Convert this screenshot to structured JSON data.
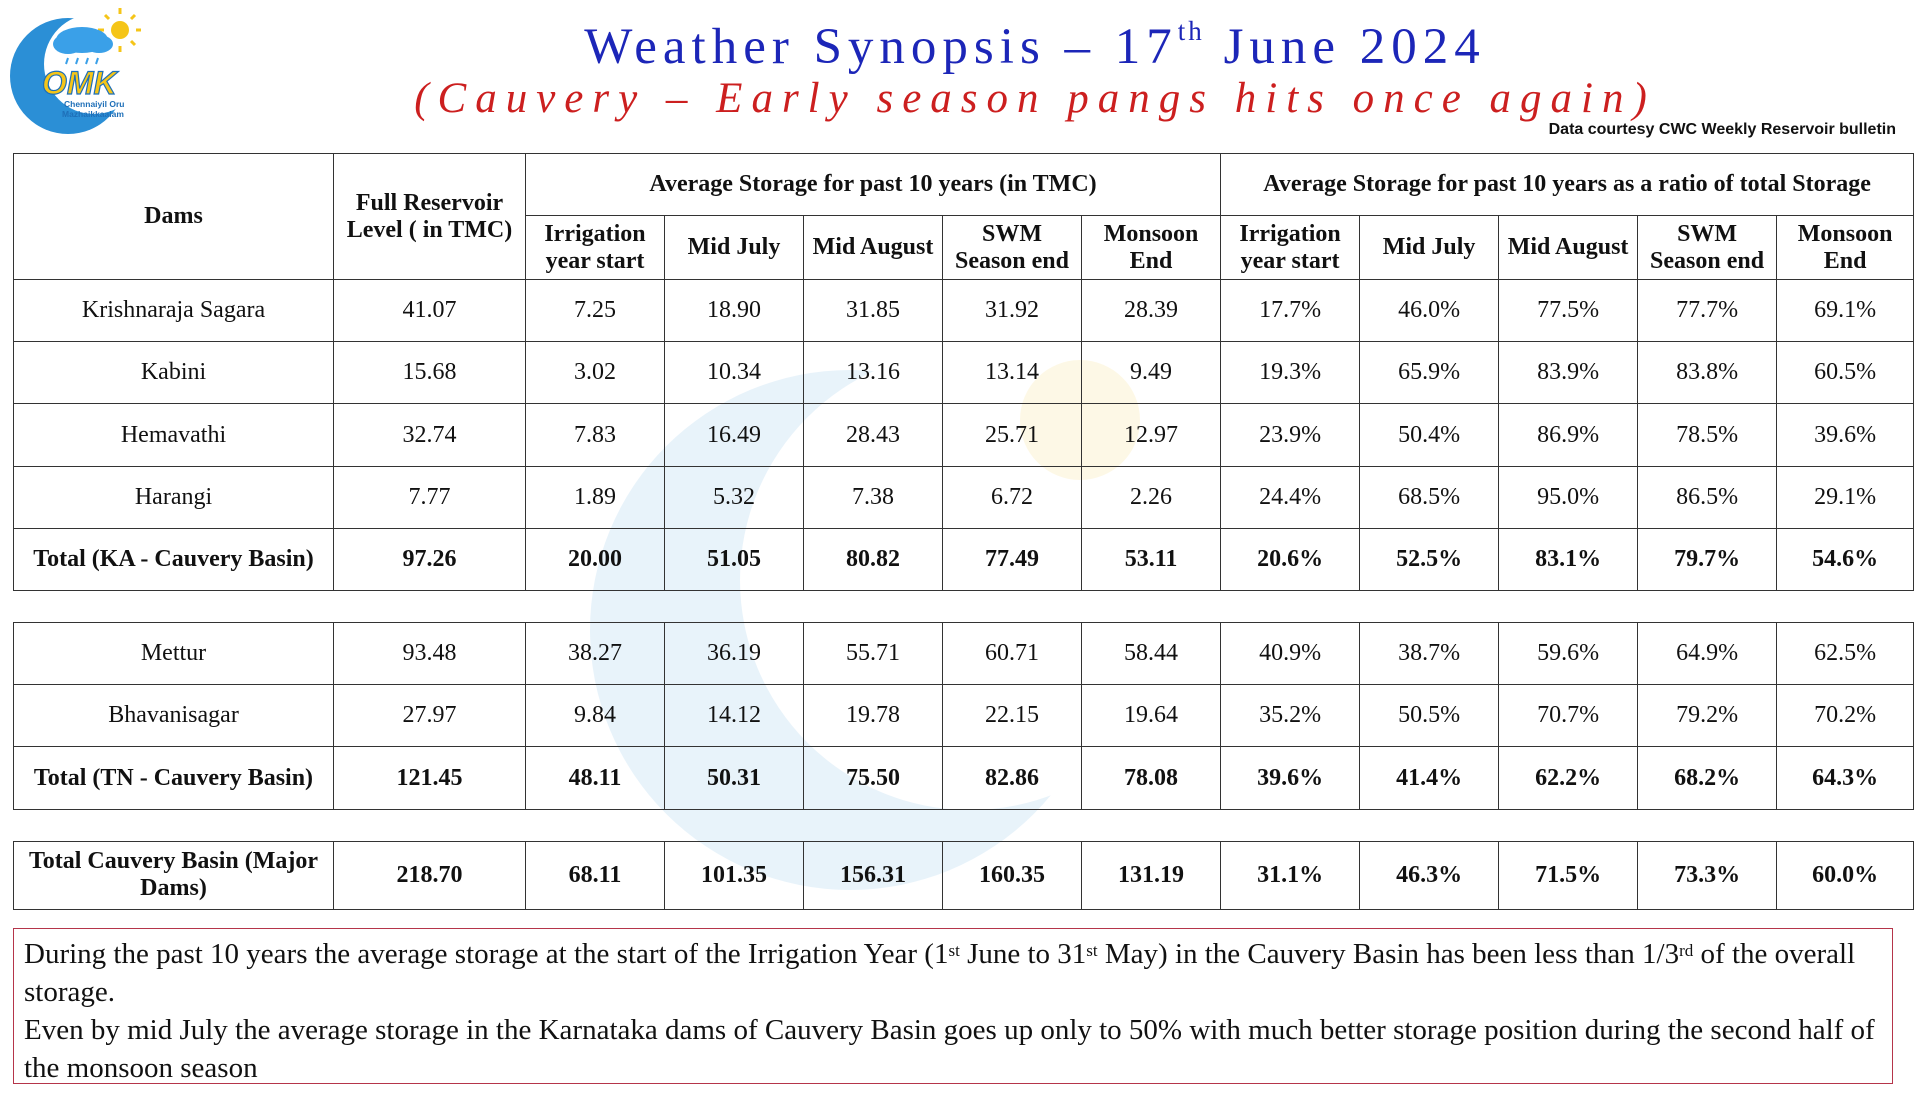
{
  "header": {
    "title_main": "Weather Synopsis – 17",
    "title_sup": "th",
    "title_end": " June 2024",
    "subtitle": "(Cauvery – Early season pangs hits once again)",
    "courtesy": "Data courtesy CWC Weekly Reservoir bulletin"
  },
  "logo": {
    "text": "OMK",
    "caption1": "Chennaiyil Oru",
    "caption2": "Mazhaikkaalam"
  },
  "table": {
    "header": {
      "dams": "Dams",
      "frl": "Full Reservoir Level ( in TMC)",
      "group1": "Average Storage for past 10 years (in TMC)",
      "group2": "Average Storage for past 10 years as a ratio of total Storage",
      "cols": [
        "Irrigation year start",
        "Mid July",
        "Mid August",
        "SWM Season end",
        "Monsoon End"
      ]
    },
    "rows": [
      {
        "name": "Krishnaraja Sagara",
        "frl": "41.07",
        "tmc": [
          "7.25",
          "18.90",
          "31.85",
          "31.92",
          "28.39"
        ],
        "pct": [
          "17.7%",
          "46.0%",
          "77.5%",
          "77.7%",
          "69.1%"
        ]
      },
      {
        "name": "Kabini",
        "frl": "15.68",
        "tmc": [
          "3.02",
          "10.34",
          "13.16",
          "13.14",
          "9.49"
        ],
        "pct": [
          "19.3%",
          "65.9%",
          "83.9%",
          "83.8%",
          "60.5%"
        ]
      },
      {
        "name": "Hemavathi",
        "frl": "32.74",
        "tmc": [
          "7.83",
          "16.49",
          "28.43",
          "25.71",
          "12.97"
        ],
        "pct": [
          "23.9%",
          "50.4%",
          "86.9%",
          "78.5%",
          "39.6%"
        ]
      },
      {
        "name": "Harangi",
        "frl": "7.77",
        "tmc": [
          "1.89",
          "5.32",
          "7.38",
          "6.72",
          "2.26"
        ],
        "pct": [
          "24.4%",
          "68.5%",
          "95.0%",
          "86.5%",
          "29.1%"
        ]
      },
      {
        "name": "Total (KA - Cauvery Basin)",
        "frl": "97.26",
        "tmc": [
          "20.00",
          "51.05",
          "80.82",
          "77.49",
          "53.11"
        ],
        "pct": [
          "20.6%",
          "52.5%",
          "83.1%",
          "79.7%",
          "54.6%"
        ]
      },
      {
        "name": "Mettur",
        "frl": "93.48",
        "tmc": [
          "38.27",
          "36.19",
          "55.71",
          "60.71",
          "58.44"
        ],
        "pct": [
          "40.9%",
          "38.7%",
          "59.6%",
          "64.9%",
          "62.5%"
        ]
      },
      {
        "name": "Bhavanisagar",
        "frl": "27.97",
        "tmc": [
          "9.84",
          "14.12",
          "19.78",
          "22.15",
          "19.64"
        ],
        "pct": [
          "35.2%",
          "50.5%",
          "70.7%",
          "79.2%",
          "70.2%"
        ]
      },
      {
        "name": "Total (TN - Cauvery Basin)",
        "frl": "121.45",
        "tmc": [
          "48.11",
          "50.31",
          "75.50",
          "82.86",
          "78.08"
        ],
        "pct": [
          "39.6%",
          "41.4%",
          "62.2%",
          "68.2%",
          "64.3%"
        ]
      },
      {
        "name": "Total Cauvery Basin (Major Dams)",
        "frl": "218.70",
        "tmc": [
          "68.11",
          "101.35",
          "156.31",
          "160.35",
          "131.19"
        ],
        "pct": [
          "31.1%",
          "46.3%",
          "71.5%",
          "73.3%",
          "60.0%"
        ]
      }
    ]
  },
  "note": {
    "l1_a": "During the past 10 years the average storage at the start of the Irrigation Year (1",
    "l1_sup1": "st",
    "l1_b": " June to 31",
    "l1_sup2": "st",
    "l1_c": " May) in the Cauvery Basin has been less than 1/3",
    "l1_sup3": "rd",
    "l1_d": " of the overall storage.",
    "l2": "Even by mid July the average storage in the Karnataka dams of Cauvery Basin goes up only to 50% with much better storage position during the second half of the monsoon season"
  },
  "colors": {
    "title": "#1c26b8",
    "subtitle": "#cc1f1f",
    "note_border": "#b5354a",
    "logo_blue": "#1e8ed8",
    "logo_yellow": "#f5c518"
  }
}
